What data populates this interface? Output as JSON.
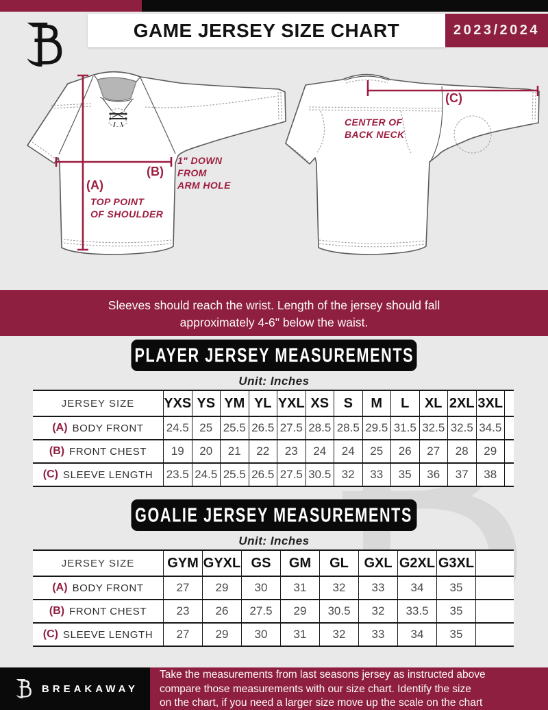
{
  "brand": {
    "maroon": "#8e1f40",
    "black": "#0a0a0a",
    "annotation_maroon": "#9d1d40"
  },
  "header": {
    "title": "GAME JERSEY SIZE CHART",
    "season": "2023/2024",
    "logo_icon": "breakaway-b-logo"
  },
  "diagram": {
    "front": {
      "label_a": "(A)",
      "a_caption_l1": "TOP POINT",
      "a_caption_l2": "OF SHOULDER",
      "label_b": "(B)",
      "b_caption_l1": "1\" DOWN",
      "b_caption_l2": "FROM",
      "b_caption_l3": "ARM HOLE"
    },
    "back": {
      "label_c": "(C)",
      "c_caption_l1": "CENTER OF",
      "c_caption_l2": "BACK NECK"
    }
  },
  "notice": {
    "line1": "Sleeves should reach the wrist. Length of the jersey should fall",
    "line2": "approximately 4-6\" below the waist."
  },
  "player": {
    "title": "PLAYER JERSEY MEASUREMENTS",
    "unit": "Unit: Inches",
    "row_header": "JERSEY SIZE",
    "sizes": [
      "YXS",
      "YS",
      "YM",
      "YL",
      "YXL",
      "XS",
      "S",
      "M",
      "L",
      "XL",
      "2XL",
      "3XL"
    ],
    "rows": [
      {
        "key": "(A)",
        "label": "BODY FRONT",
        "values": [
          "24.5",
          "25",
          "25.5",
          "26.5",
          "27.5",
          "28.5",
          "28.5",
          "29.5",
          "31.5",
          "32.5",
          "32.5",
          "34.5"
        ]
      },
      {
        "key": "(B)",
        "label": "FRONT CHEST",
        "values": [
          "19",
          "20",
          "21",
          "22",
          "23",
          "24",
          "24",
          "25",
          "26",
          "27",
          "28",
          "29"
        ]
      },
      {
        "key": "(C)",
        "label": "SLEEVE LENGTH",
        "values": [
          "23.5",
          "24.5",
          "25.5",
          "26.5",
          "27.5",
          "30.5",
          "32",
          "33",
          "35",
          "36",
          "37",
          "38"
        ]
      }
    ]
  },
  "goalie": {
    "title": "GOALIE JERSEY MEASUREMENTS",
    "unit": "Unit: Inches",
    "row_header": "JERSEY SIZE",
    "sizes": [
      "GYM",
      "GYXL",
      "GS",
      "GM",
      "GL",
      "GXL",
      "G2XL",
      "G3XL"
    ],
    "rows": [
      {
        "key": "(A)",
        "label": "BODY FRONT",
        "values": [
          "27",
          "29",
          "30",
          "31",
          "32",
          "33",
          "34",
          "35"
        ]
      },
      {
        "key": "(B)",
        "label": "FRONT CHEST",
        "values": [
          "23",
          "26",
          "27.5",
          "29",
          "30.5",
          "32",
          "33.5",
          "35"
        ]
      },
      {
        "key": "(C)",
        "label": "SLEEVE LENGTH",
        "values": [
          "27",
          "29",
          "30",
          "31",
          "32",
          "33",
          "34",
          "35"
        ]
      }
    ]
  },
  "footer": {
    "brand": "BREAKAWAY",
    "line1": "Take the measurements from last seasons jersey as instructed above",
    "line2": "compare those measurements  with our size chart. Identify the size",
    "line3": "on the chart, if you need a larger size move up the scale on the chart"
  }
}
